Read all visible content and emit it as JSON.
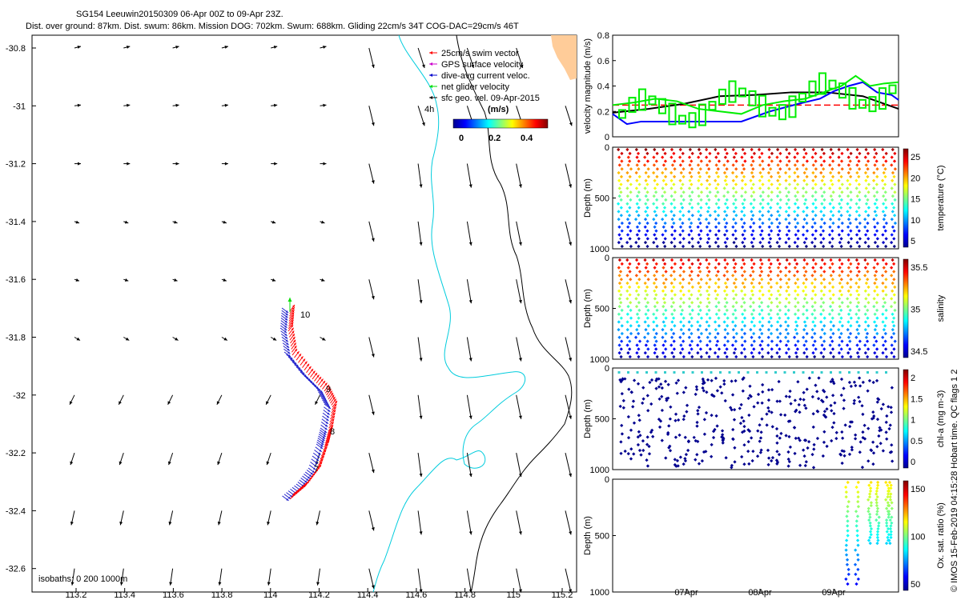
{
  "header": {
    "line1": "SG154 Leeuwin20150309 06-Apr 00Z to 09-Apr 23Z.",
    "line2": "Dist. over ground: 87km. Dist. swum: 86km. Mission DOG: 702km. Swum: 688km. Gliding 22cm/s 34T COG-DAC=29cm/s 46T"
  },
  "map": {
    "xticks": [
      "113.2",
      "113.4",
      "113.6",
      "113.8",
      "114",
      "114.2",
      "114.4",
      "114.6",
      "114.8",
      "115",
      "115.2"
    ],
    "yticks": [
      "-30.8",
      "-31",
      "-31.2",
      "-31.4",
      "-31.6",
      "-31.8",
      "-32",
      "-32.2",
      "-32.4",
      "-32.6"
    ],
    "isobath_label": "isobaths: 0   200  1000m",
    "time_label": "4h",
    "legend": [
      {
        "label": "25cm/s swim vector",
        "color": "#ff0000"
      },
      {
        "label": "GPS surface velocity",
        "color": "#cc00cc"
      },
      {
        "label": "dive-avg current veloc.",
        "color": "#0000cc"
      },
      {
        "label": "net glider velocity",
        "color": "#00dd00"
      },
      {
        "label": "sfc geo. vel. 09-Apr-2015",
        "color": "#000000"
      }
    ],
    "colorbar": {
      "unit": "(m/s)",
      "ticks": [
        "0",
        "0.2",
        "0.4"
      ]
    },
    "track_labels": [
      "10",
      "9",
      "8",
      "7"
    ]
  },
  "side_label": "© IMOS 15-Feb-2019 04:15:28 Hobart time. QC flags 1  2",
  "chart_data": [
    {
      "type": "line",
      "title": "",
      "ylabel": "velocity magnitude (m/s)",
      "ylim": [
        0,
        0.8
      ],
      "yticks": [
        "0",
        "0.2",
        "0.4",
        "0.6",
        "0.8"
      ],
      "series": [
        {
          "name": "swim vector",
          "color": "#ff0000",
          "x": [
            0,
            4
          ],
          "values": [
            0.25,
            0.25
          ]
        },
        {
          "name": "sfc geo. vel.",
          "color": "#000000",
          "x": [
            0,
            0.5,
            1,
            1.5,
            2,
            2.5,
            3,
            3.5,
            4
          ],
          "values": [
            0.19,
            0.22,
            0.26,
            0.32,
            0.33,
            0.35,
            0.35,
            0.32,
            0.22
          ]
        },
        {
          "name": "dive-avg current",
          "color": "#0000ff",
          "x": [
            0,
            0.2,
            0.4,
            0.7,
            1,
            1.4,
            1.8,
            2.2,
            2.6,
            2.9,
            3.1,
            3.3,
            3.5,
            3.7,
            3.9,
            4
          ],
          "values": [
            0.18,
            0.1,
            0.12,
            0.12,
            0.12,
            0.12,
            0.12,
            0.2,
            0.26,
            0.3,
            0.36,
            0.4,
            0.43,
            0.35,
            0.33,
            0.29
          ]
        },
        {
          "name": "net glider velocity",
          "color": "#00ee00",
          "x": [
            0,
            0.3,
            0.6,
            0.9,
            1.2,
            1.5,
            1.8,
            2.1,
            2.4,
            2.7,
            3.0,
            3.2,
            3.4,
            3.6,
            3.8,
            4
          ],
          "values": [
            0.25,
            0.27,
            0.3,
            0.28,
            0.22,
            0.2,
            0.18,
            0.25,
            0.28,
            0.3,
            0.36,
            0.4,
            0.48,
            0.4,
            0.42,
            0.43
          ]
        }
      ]
    },
    {
      "type": "scatter",
      "ylabel": "Depth (m)",
      "clabel": "temperature (°C)",
      "ylim": [
        0,
        1000
      ],
      "yticks": [
        "0",
        "500",
        "1000"
      ],
      "cticks": [
        "5",
        "10",
        "15",
        "20",
        "25"
      ],
      "profiles": 32
    },
    {
      "type": "scatter",
      "ylabel": "Depth (m)",
      "clabel": "salinity",
      "ylim": [
        0,
        1000
      ],
      "yticks": [
        "0",
        "500",
        "1000"
      ],
      "cticks": [
        "34.5",
        "35",
        "35.5"
      ],
      "profiles": 32
    },
    {
      "type": "scatter",
      "ylabel": "Depth (m)",
      "clabel": "chl-a (mg m-3)",
      "ylim": [
        0,
        1000
      ],
      "yticks": [
        "0",
        "500",
        "1000"
      ],
      "cticks": [
        "0",
        "0.5",
        "1",
        "1.5",
        "2"
      ],
      "profiles": 32
    },
    {
      "type": "scatter",
      "ylabel": "Depth (m)",
      "clabel": "Ox. sat. ratio (%)",
      "ylim": [
        0,
        1000
      ],
      "yticks": [
        "0",
        "500",
        "1000"
      ],
      "cticks": [
        "50",
        "100",
        "150"
      ],
      "xticks": [
        "07Apr",
        "08Apr",
        "09Apr"
      ],
      "profiles": 6
    }
  ]
}
